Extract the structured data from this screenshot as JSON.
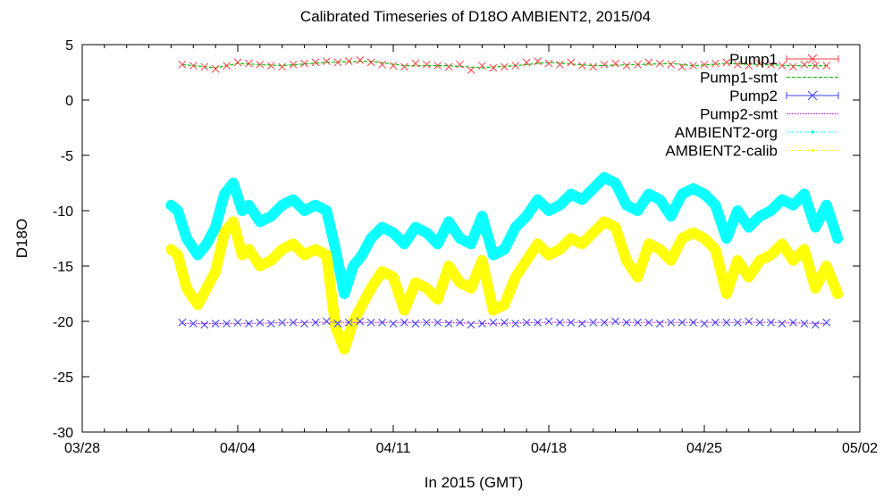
{
  "chart_data": {
    "type": "line",
    "title": "Calibrated Timeseries of D18O AMBIENT2, 2015/04",
    "xlabel": "In 2015 (GMT)",
    "ylabel": "D18O",
    "xlim": [
      -4,
      31
    ],
    "ylim": [
      -30,
      5
    ],
    "x_unit_note": "days relative to 2015-04-01",
    "x_ticks": [
      {
        "value": -4,
        "label": "03/28"
      },
      {
        "value": 3,
        "label": "04/04"
      },
      {
        "value": 10,
        "label": "04/11"
      },
      {
        "value": 17,
        "label": "04/18"
      },
      {
        "value": 24,
        "label": "04/25"
      },
      {
        "value": 31,
        "label": "05/02"
      }
    ],
    "y_ticks": [
      {
        "value": 5,
        "label": "5"
      },
      {
        "value": 0,
        "label": "0"
      },
      {
        "value": -5,
        "label": "-5"
      },
      {
        "value": -10,
        "label": "-10"
      },
      {
        "value": -15,
        "label": "-15"
      },
      {
        "value": -20,
        "label": "-20"
      },
      {
        "value": -25,
        "label": "-25"
      },
      {
        "value": -30,
        "label": "-30"
      }
    ],
    "legend": "top-right",
    "series": [
      {
        "name": "Pump1",
        "style": "points",
        "color": "#ff3b3b",
        "x": [
          0.5,
          1.0,
          1.5,
          2.0,
          2.5,
          3.0,
          3.5,
          4.0,
          4.5,
          5.0,
          5.5,
          6.0,
          6.5,
          7.0,
          7.5,
          8.0,
          8.5,
          9.0,
          9.5,
          10.0,
          10.5,
          11.0,
          11.5,
          12.0,
          12.5,
          13.0,
          13.5,
          14.0,
          14.5,
          15.0,
          15.5,
          16.0,
          16.5,
          17.0,
          17.5,
          18.0,
          18.5,
          19.0,
          19.5,
          20.0,
          20.5,
          21.0,
          21.5,
          22.0,
          22.5,
          23.0,
          23.5,
          24.0,
          24.5,
          25.0,
          25.5,
          26.0,
          26.5,
          27.0,
          27.5,
          28.0,
          28.5,
          29.0,
          29.5
        ],
        "y": [
          3.2,
          3.1,
          3.0,
          2.8,
          3.1,
          3.4,
          3.3,
          3.2,
          3.1,
          3.0,
          3.2,
          3.3,
          3.4,
          3.5,
          3.4,
          3.5,
          3.6,
          3.4,
          3.2,
          3.1,
          3.0,
          3.3,
          3.2,
          3.1,
          3.0,
          3.2,
          2.7,
          3.1,
          2.9,
          3.0,
          3.1,
          3.4,
          3.5,
          3.3,
          3.2,
          3.4,
          3.1,
          3.0,
          3.2,
          3.3,
          3.1,
          3.2,
          3.4,
          3.3,
          3.2,
          3.0,
          3.1,
          3.2,
          3.3,
          3.4,
          3.2,
          3.1,
          3.3,
          3.2,
          3.1,
          3.0,
          3.2,
          3.1,
          3.1
        ]
      },
      {
        "name": "Pump1-smt",
        "style": "line-dashed",
        "color": "#00c000",
        "x": [
          0.5,
          2.0,
          3.0,
          5.0,
          7.0,
          9.0,
          10.5,
          12.5,
          14.0,
          15.5,
          17.0,
          19.0,
          21.0,
          22.5,
          23.5,
          25.0,
          26.5,
          28.0,
          29.5
        ],
        "y": [
          3.2,
          2.9,
          3.3,
          3.1,
          3.4,
          3.5,
          3.1,
          3.1,
          2.9,
          3.1,
          3.4,
          3.1,
          3.2,
          3.3,
          3.1,
          3.3,
          3.2,
          3.1,
          3.1
        ]
      },
      {
        "name": "Pump2",
        "style": "points",
        "color": "#3b3bff",
        "x": [
          0.5,
          1.0,
          1.5,
          2.0,
          2.5,
          3.0,
          3.5,
          4.0,
          4.5,
          5.0,
          5.5,
          6.0,
          6.5,
          7.0,
          7.5,
          8.0,
          8.5,
          9.0,
          9.5,
          10.0,
          10.5,
          11.0,
          11.5,
          12.0,
          12.5,
          13.0,
          13.5,
          14.0,
          14.5,
          15.0,
          15.5,
          16.0,
          16.5,
          17.0,
          17.5,
          18.0,
          18.5,
          19.0,
          19.5,
          20.0,
          20.5,
          21.0,
          21.5,
          22.0,
          22.5,
          23.0,
          23.5,
          24.0,
          24.5,
          25.0,
          25.5,
          26.0,
          26.5,
          27.0,
          27.5,
          28.0,
          28.5,
          29.0,
          29.5
        ],
        "y": [
          -20.1,
          -20.2,
          -20.3,
          -20.2,
          -20.2,
          -20.1,
          -20.2,
          -20.1,
          -20.2,
          -20.1,
          -20.1,
          -20.2,
          -20.1,
          -20.0,
          -20.2,
          -20.1,
          -20.0,
          -20.1,
          -20.1,
          -20.2,
          -20.1,
          -20.2,
          -20.1,
          -20.1,
          -20.2,
          -20.1,
          -20.3,
          -20.2,
          -20.1,
          -20.1,
          -20.2,
          -20.1,
          -20.1,
          -20.0,
          -20.1,
          -20.1,
          -20.2,
          -20.1,
          -20.1,
          -20.0,
          -20.1,
          -20.1,
          -20.1,
          -20.2,
          -20.1,
          -20.1,
          -20.1,
          -20.2,
          -20.1,
          -20.1,
          -20.1,
          -20.0,
          -20.1,
          -20.1,
          -20.2,
          -20.1,
          -20.2,
          -20.3,
          -20.1
        ]
      },
      {
        "name": "Pump2-smt",
        "style": "line-dotted",
        "color": "#c000ff",
        "x": [
          0.5,
          3.0,
          6.0,
          9.0,
          12.0,
          14.5,
          16.5,
          20.0,
          24.0,
          27.0,
          29.5
        ],
        "y": [
          -20.2,
          -20.2,
          -20.1,
          -20.1,
          -20.1,
          -20.2,
          -20.1,
          -20.1,
          -20.1,
          -20.1,
          -20.2
        ]
      },
      {
        "name": "AMBIENT2-org",
        "style": "band",
        "color": "#00ffff",
        "x": [
          0.0,
          0.3,
          0.7,
          1.2,
          1.6,
          2.0,
          2.4,
          2.8,
          3.2,
          3.5,
          4.0,
          4.5,
          5.0,
          5.5,
          6.0,
          6.5,
          7.0,
          7.4,
          7.8,
          8.2,
          8.6,
          9.0,
          9.5,
          10.0,
          10.5,
          11.0,
          11.5,
          12.0,
          12.5,
          13.0,
          13.5,
          14.0,
          14.5,
          15.0,
          15.5,
          16.0,
          16.5,
          17.0,
          17.5,
          18.0,
          18.5,
          19.0,
          19.5,
          20.0,
          20.5,
          21.0,
          21.5,
          22.0,
          22.5,
          23.0,
          23.5,
          24.0,
          24.5,
          25.0,
          25.5,
          26.0,
          26.5,
          27.0,
          27.5,
          28.0,
          28.5,
          29.0,
          29.5,
          30.0
        ],
        "y": [
          -9.5,
          -10.0,
          -12.5,
          -14.0,
          -13.0,
          -11.5,
          -8.5,
          -7.5,
          -10.0,
          -9.5,
          -11.0,
          -10.5,
          -9.5,
          -9.0,
          -10.0,
          -9.5,
          -10.0,
          -13.5,
          -17.5,
          -15.0,
          -14.0,
          -12.5,
          -11.5,
          -12.0,
          -13.0,
          -11.5,
          -12.0,
          -13.0,
          -11.0,
          -12.5,
          -13.0,
          -10.5,
          -14.0,
          -13.5,
          -11.5,
          -10.5,
          -9.0,
          -10.0,
          -9.5,
          -8.5,
          -9.0,
          -8.0,
          -7.0,
          -7.5,
          -9.5,
          -10.0,
          -8.5,
          -9.0,
          -10.5,
          -8.5,
          -8.0,
          -8.5,
          -9.5,
          -12.5,
          -10.0,
          -11.5,
          -10.5,
          -10.0,
          -9.0,
          -9.5,
          -8.5,
          -11.5,
          -9.5,
          -12.5
        ]
      },
      {
        "name": "AMBIENT2-calib",
        "style": "band",
        "color": "#ffff00",
        "x": [
          0.0,
          0.3,
          0.7,
          1.2,
          1.6,
          2.0,
          2.4,
          2.8,
          3.2,
          3.5,
          4.0,
          4.5,
          5.0,
          5.5,
          6.0,
          6.5,
          7.0,
          7.4,
          7.8,
          8.2,
          8.6,
          9.0,
          9.5,
          10.0,
          10.5,
          11.0,
          11.5,
          12.0,
          12.5,
          13.0,
          13.5,
          14.0,
          14.5,
          15.0,
          15.5,
          16.0,
          16.5,
          17.0,
          17.5,
          18.0,
          18.5,
          19.0,
          19.5,
          20.0,
          20.5,
          21.0,
          21.5,
          22.0,
          22.5,
          23.0,
          23.5,
          24.0,
          24.5,
          25.0,
          25.5,
          26.0,
          26.5,
          27.0,
          27.5,
          28.0,
          28.5,
          29.0,
          29.5,
          30.0
        ],
        "y": [
          -13.5,
          -14.0,
          -17.0,
          -18.5,
          -17.0,
          -15.5,
          -12.0,
          -11.0,
          -14.0,
          -13.5,
          -15.0,
          -14.5,
          -13.5,
          -13.0,
          -14.0,
          -13.5,
          -14.0,
          -20.5,
          -22.5,
          -20.0,
          -18.5,
          -17.0,
          -15.5,
          -16.0,
          -19.0,
          -16.5,
          -17.0,
          -18.0,
          -15.0,
          -16.5,
          -17.0,
          -14.5,
          -19.0,
          -18.5,
          -16.0,
          -14.5,
          -13.0,
          -14.0,
          -13.5,
          -12.5,
          -13.0,
          -12.0,
          -11.0,
          -11.5,
          -14.5,
          -16.0,
          -13.0,
          -13.5,
          -14.5,
          -12.5,
          -12.0,
          -12.5,
          -13.5,
          -17.5,
          -14.5,
          -16.0,
          -14.5,
          -14.0,
          -13.0,
          -14.5,
          -13.5,
          -17.0,
          -15.0,
          -17.5
        ]
      }
    ]
  }
}
